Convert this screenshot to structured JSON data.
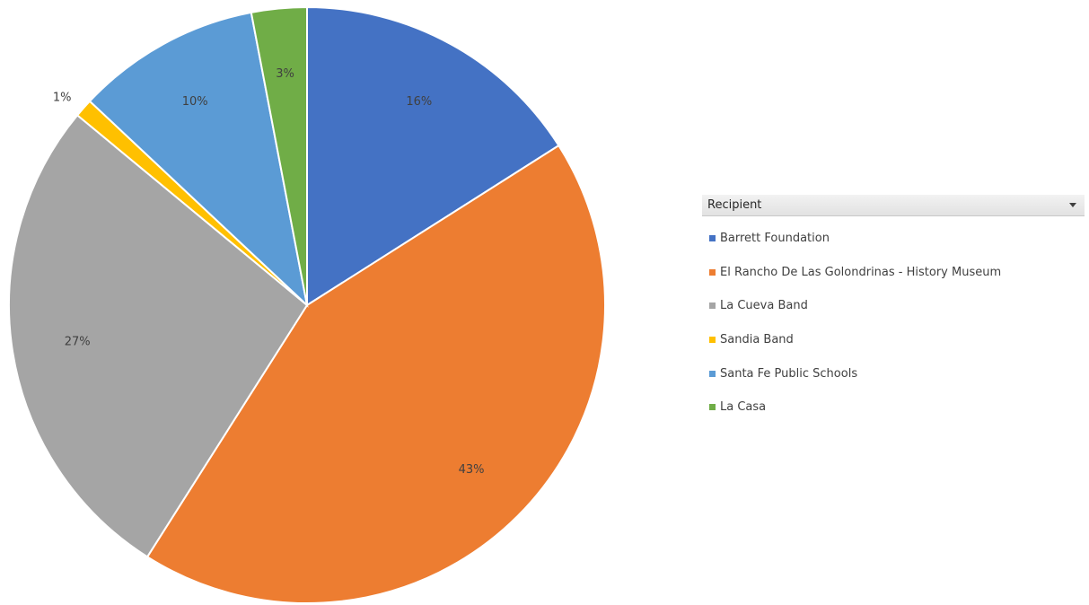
{
  "chart_data": {
    "type": "pie",
    "legend_title": "Recipient",
    "legend_position": "right",
    "categories": [
      "Barrett Foundation",
      "El Rancho De Las Golondrinas - History Museum",
      "La Cueva Band",
      "Sandia Band",
      "Santa Fe Public Schools",
      "La Casa"
    ],
    "values": [
      16,
      43,
      27,
      1,
      10,
      3
    ],
    "data_labels": [
      "16%",
      "43%",
      "27%",
      "1%",
      "10%",
      "3%"
    ],
    "colors": [
      "#4472C4",
      "#ED7D31",
      "#A5A5A5",
      "#FFC000",
      "#5B9BD5",
      "#70AD47"
    ]
  }
}
